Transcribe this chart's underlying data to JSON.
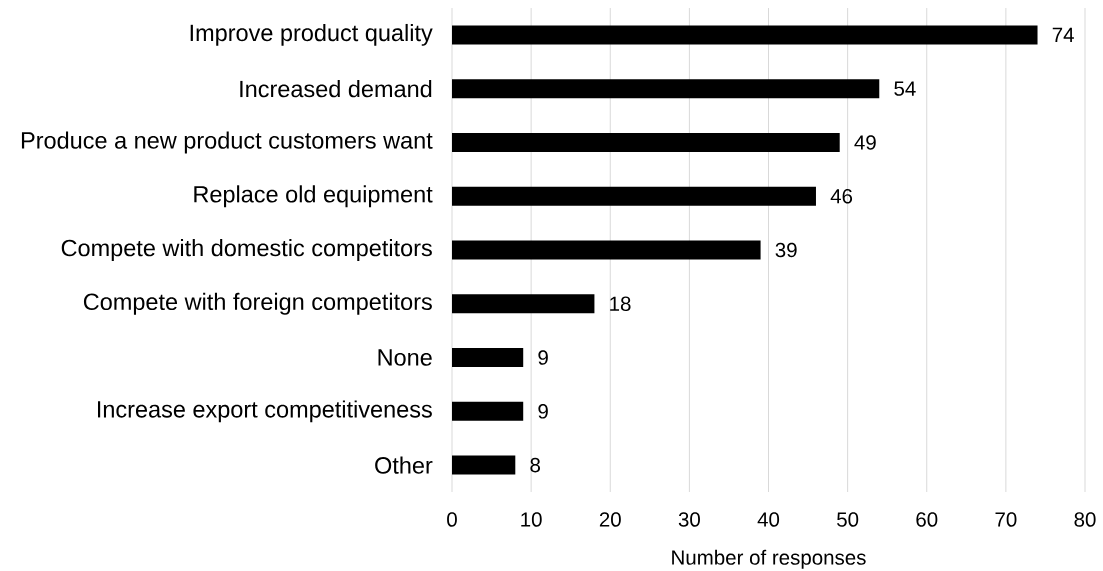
{
  "chart_data": {
    "type": "bar",
    "orientation": "horizontal",
    "categories": [
      "Improve product quality",
      "Increased demand",
      "Produce a new product customers want",
      "Replace old equipment",
      "Compete with domestic competitors",
      "Compete with foreign competitors",
      "None",
      "Increase export competitiveness",
      "Other"
    ],
    "values": [
      74,
      54,
      49,
      46,
      39,
      18,
      9,
      9,
      8
    ],
    "color": "#000000",
    "xlabel": "Number of responses",
    "xlim": [
      0,
      80
    ],
    "xticks": [
      0,
      10,
      20,
      30,
      40,
      50,
      60,
      70,
      80
    ],
    "grid": "x",
    "data_labels": true
  }
}
